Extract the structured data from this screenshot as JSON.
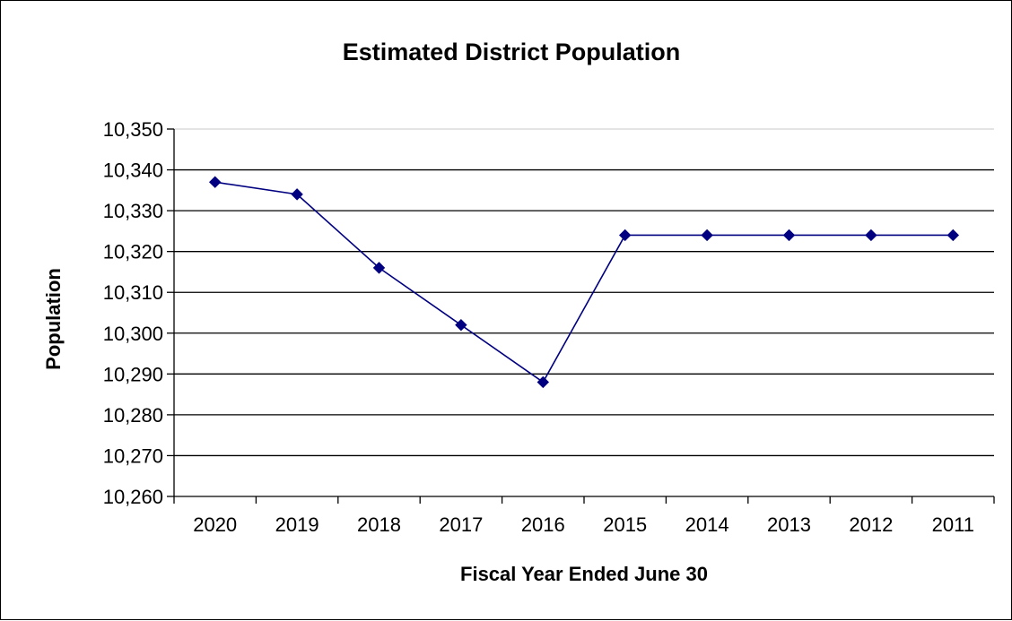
{
  "chart_data": {
    "type": "line",
    "title": "Estimated District Population",
    "xlabel": "Fiscal Year Ended June 30",
    "ylabel": "Population",
    "categories": [
      "2020",
      "2019",
      "2018",
      "2017",
      "2016",
      "2015",
      "2014",
      "2013",
      "2012",
      "2011"
    ],
    "series": [
      {
        "values": [
          10337,
          10334,
          10316,
          10302,
          10288,
          10324,
          10324,
          10324,
          10324,
          10324
        ]
      }
    ],
    "ylim": [
      10260,
      10350
    ],
    "yticks": [
      10260,
      10270,
      10280,
      10290,
      10300,
      10310,
      10320,
      10330,
      10340,
      10350
    ],
    "ytick_labels": [
      "10,260",
      "10,270",
      "10,280",
      "10,290",
      "10,300",
      "10,310",
      "10,320",
      "10,330",
      "10,340",
      "10,350"
    ],
    "grid": "horizontal",
    "legend": "none",
    "series_color": "#000080"
  }
}
